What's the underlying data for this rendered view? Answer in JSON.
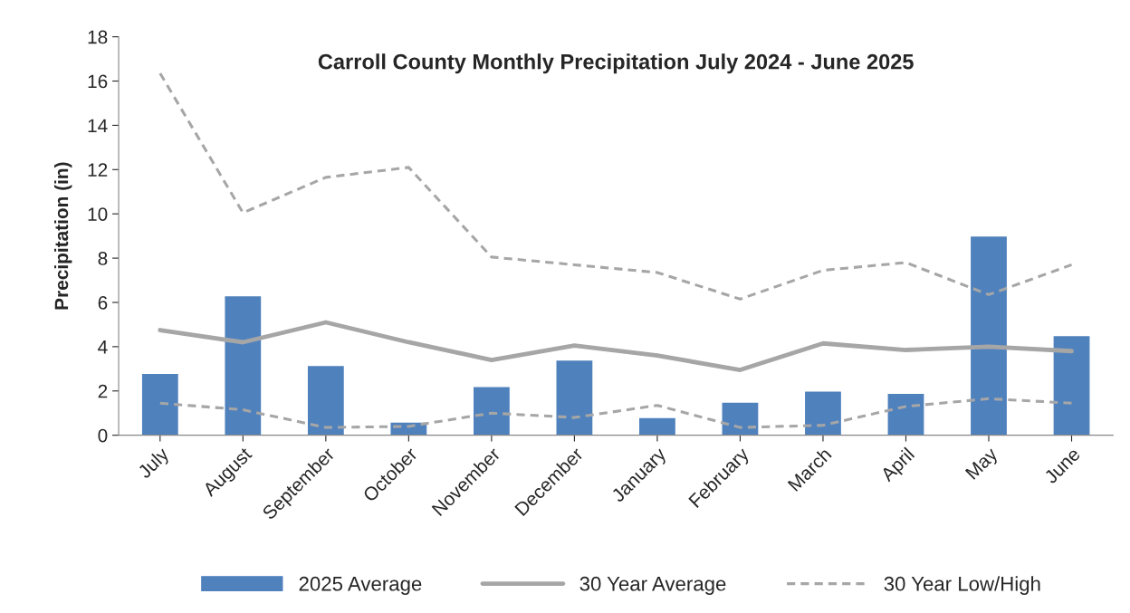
{
  "chart_data": {
    "type": "bar",
    "title": "Carroll County Monthly Precipitation July 2024 - June 2025",
    "ylabel": "Precipitation (in)",
    "categories": [
      "July",
      "August",
      "September",
      "October",
      "November",
      "December",
      "January",
      "February",
      "March",
      "April",
      "May",
      "June"
    ],
    "series": [
      {
        "name": "2025 Average",
        "color": "#4f81bd",
        "values": [
          2.8,
          6.3,
          3.15,
          0.6,
          2.2,
          3.4,
          0.8,
          1.5,
          2.0,
          1.9,
          9.0,
          4.5
        ]
      },
      {
        "name": "30 Year Average",
        "type": "line",
        "color": "#a6a6a6",
        "line_style": "solid",
        "values": [
          4.75,
          4.2,
          5.1,
          4.2,
          3.4,
          4.05,
          3.6,
          2.95,
          4.15,
          3.85,
          4.0,
          3.8
        ]
      },
      {
        "name": "30 Year Low/High",
        "type": "line",
        "color": "#a6a6a6",
        "line_style": "dashed",
        "values": [
          1.45,
          1.15,
          0.35,
          0.4,
          1.0,
          0.8,
          1.35,
          0.35,
          0.45,
          1.3,
          1.65,
          1.45
        ]
      },
      {
        "type": "line",
        "color": "#a6a6a6",
        "line_style": "dashed",
        "values": [
          16.35,
          10.05,
          11.65,
          12.1,
          8.05,
          7.7,
          7.35,
          6.15,
          7.45,
          7.8,
          6.35,
          7.7
        ]
      }
    ],
    "ylim": [
      0,
      18
    ],
    "yticks": [
      0,
      2,
      4,
      6,
      8,
      10,
      12,
      14,
      16,
      18
    ],
    "grid": false,
    "legend": "bottom"
  }
}
